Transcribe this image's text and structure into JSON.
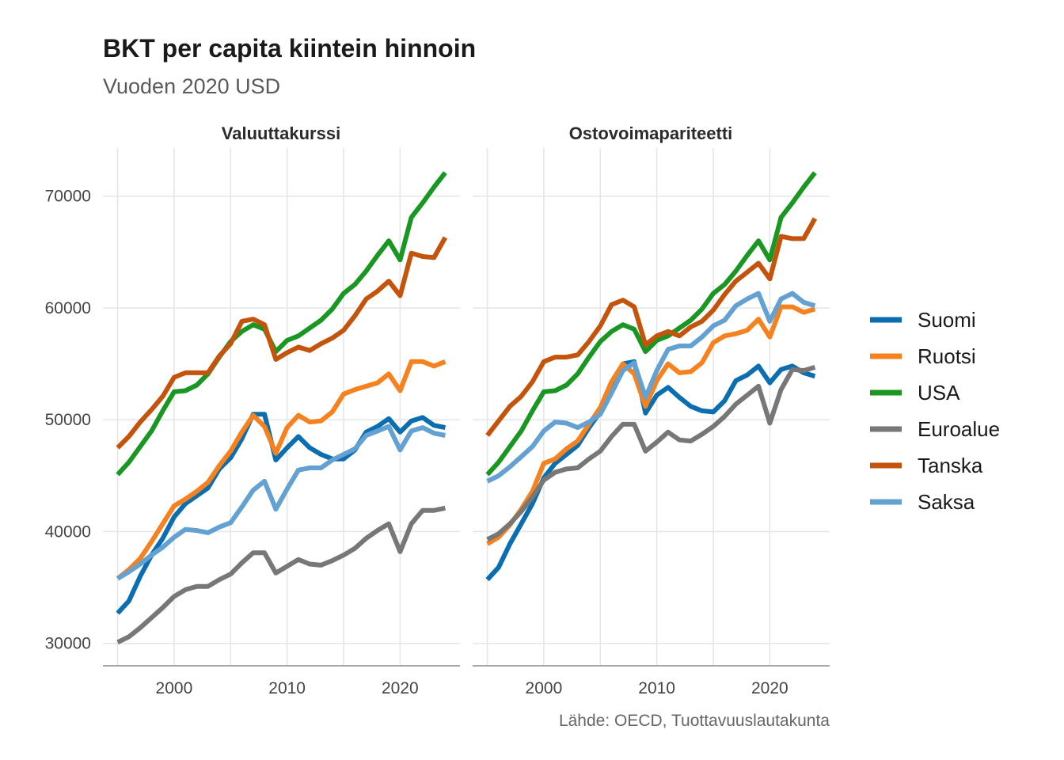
{
  "title": "BKT per capita kiintein hinnoin",
  "subtitle": "Vuoden 2020 USD",
  "caption": "Lähde: OECD, Tuottavuuslautakunta",
  "colors": {
    "Suomi": "#0a6eb0",
    "Ruotsi": "#f5821f",
    "USA": "#1a9622",
    "Euroalue": "#777777",
    "Tanska": "#c4530c",
    "Saksa": "#62a1d2"
  },
  "legend": [
    "Suomi",
    "Ruotsi",
    "USA",
    "Euroalue",
    "Tanska",
    "Saksa"
  ],
  "chart_data": [
    {
      "type": "line",
      "panel": "Valuuttakurssi",
      "x": [
        1995,
        1996,
        1997,
        1998,
        1999,
        2000,
        2001,
        2002,
        2003,
        2004,
        2005,
        2006,
        2007,
        2008,
        2009,
        2010,
        2011,
        2012,
        2013,
        2014,
        2015,
        2016,
        2017,
        2018,
        2019,
        2020,
        2021,
        2022,
        2023,
        2024
      ],
      "xticks": [
        2000,
        2010,
        2020
      ],
      "yticks": [
        30000,
        40000,
        50000,
        60000,
        70000
      ],
      "series": [
        {
          "name": "Suomi",
          "values": [
            32700,
            33800,
            36000,
            37900,
            39400,
            41300,
            42500,
            43200,
            43900,
            45600,
            46600,
            48300,
            50500,
            50500,
            46400,
            47500,
            48500,
            47500,
            46900,
            46500,
            46500,
            47300,
            48900,
            49400,
            50100,
            48900,
            49900,
            50200,
            49500,
            49300
          ]
        },
        {
          "name": "Ruotsi",
          "values": [
            35800,
            36600,
            37600,
            39100,
            40700,
            42300,
            42900,
            43600,
            44400,
            45900,
            47200,
            48900,
            50400,
            49400,
            47000,
            49300,
            50400,
            49800,
            49900,
            50700,
            52300,
            52700,
            53000,
            53300,
            54100,
            52600,
            55200,
            55200,
            54800,
            55200
          ]
        },
        {
          "name": "USA",
          "values": [
            45100,
            46200,
            47600,
            49000,
            50800,
            52500,
            52600,
            53100,
            54100,
            55600,
            57000,
            57900,
            58500,
            58100,
            56100,
            57100,
            57500,
            58200,
            58900,
            59900,
            61300,
            62100,
            63300,
            64700,
            66000,
            64300,
            68100,
            69400,
            70800,
            72100
          ]
        },
        {
          "name": "Euroalue",
          "values": [
            30100,
            30600,
            31400,
            32300,
            33200,
            34200,
            34800,
            35100,
            35100,
            35700,
            36200,
            37200,
            38100,
            38100,
            36300,
            36900,
            37500,
            37100,
            37000,
            37400,
            37900,
            38500,
            39400,
            40100,
            40700,
            38200,
            40700,
            41900,
            41900,
            42100
          ]
        },
        {
          "name": "Tanska",
          "values": [
            47500,
            48500,
            49800,
            50900,
            52100,
            53800,
            54200,
            54200,
            54200,
            55700,
            56800,
            58800,
            59000,
            58500,
            55400,
            56000,
            56500,
            56200,
            56800,
            57300,
            58000,
            59300,
            60800,
            61500,
            62400,
            61100,
            64900,
            64600,
            64500,
            66300
          ]
        },
        {
          "name": "Saksa",
          "values": [
            35800,
            36400,
            37100,
            37900,
            38600,
            39500,
            40200,
            40100,
            39900,
            40400,
            40800,
            42200,
            43700,
            44500,
            42000,
            43800,
            45500,
            45700,
            45700,
            46400,
            46900,
            47400,
            48600,
            49000,
            49400,
            47300,
            49000,
            49300,
            48800,
            48600
          ]
        }
      ]
    },
    {
      "type": "line",
      "panel": "Ostovoimapariteetti",
      "x": [
        1995,
        1996,
        1997,
        1998,
        1999,
        2000,
        2001,
        2002,
        2003,
        2004,
        2005,
        2006,
        2007,
        2008,
        2009,
        2010,
        2011,
        2012,
        2013,
        2014,
        2015,
        2016,
        2017,
        2018,
        2019,
        2020,
        2021,
        2022,
        2023,
        2024
      ],
      "xticks": [
        2000,
        2010,
        2020
      ],
      "yticks": [
        30000,
        40000,
        50000,
        60000,
        70000
      ],
      "series": [
        {
          "name": "Suomi",
          "values": [
            35700,
            36800,
            38900,
            40700,
            42500,
            44800,
            46100,
            46900,
            47700,
            49300,
            50700,
            53000,
            55000,
            55200,
            50600,
            52200,
            52900,
            52000,
            51200,
            50800,
            50700,
            51700,
            53500,
            54000,
            54800,
            53300,
            54500,
            54800,
            54200,
            53900
          ]
        },
        {
          "name": "Ruotsi",
          "values": [
            38900,
            39500,
            40600,
            42000,
            43600,
            46100,
            46500,
            47400,
            48100,
            49600,
            51100,
            53400,
            55000,
            54100,
            51200,
            53500,
            55000,
            54200,
            54300,
            55100,
            56900,
            57500,
            57700,
            58000,
            59000,
            57400,
            60100,
            60100,
            59600,
            59900
          ]
        },
        {
          "name": "USA",
          "values": [
            45100,
            46200,
            47600,
            49000,
            50800,
            52500,
            52600,
            53100,
            54100,
            55600,
            57000,
            57900,
            58500,
            58100,
            56100,
            57100,
            57500,
            58200,
            58900,
            59900,
            61300,
            62100,
            63300,
            64700,
            66000,
            64300,
            68100,
            69400,
            70800,
            72100
          ]
        },
        {
          "name": "Euroalue",
          "values": [
            39300,
            39800,
            40700,
            41800,
            43100,
            44600,
            45300,
            45600,
            45700,
            46500,
            47200,
            48500,
            49600,
            49600,
            47200,
            48000,
            48900,
            48200,
            48100,
            48700,
            49400,
            50300,
            51400,
            52200,
            53000,
            49700,
            52700,
            54500,
            54400,
            54700
          ]
        },
        {
          "name": "Tanska",
          "values": [
            48600,
            49900,
            51200,
            52100,
            53400,
            55200,
            55600,
            55600,
            55800,
            57000,
            58400,
            60300,
            60700,
            60100,
            56700,
            57500,
            57900,
            57500,
            58300,
            58800,
            59800,
            61200,
            62400,
            63200,
            64000,
            62600,
            66400,
            66200,
            66200,
            68000
          ]
        },
        {
          "name": "Saksa",
          "values": [
            44500,
            45000,
            45800,
            46700,
            47600,
            49000,
            49800,
            49700,
            49300,
            49800,
            50500,
            52400,
            54400,
            55100,
            52000,
            54400,
            56300,
            56600,
            56600,
            57400,
            58400,
            58900,
            60200,
            60800,
            61300,
            58800,
            60800,
            61300,
            60500,
            60200
          ]
        }
      ]
    }
  ]
}
